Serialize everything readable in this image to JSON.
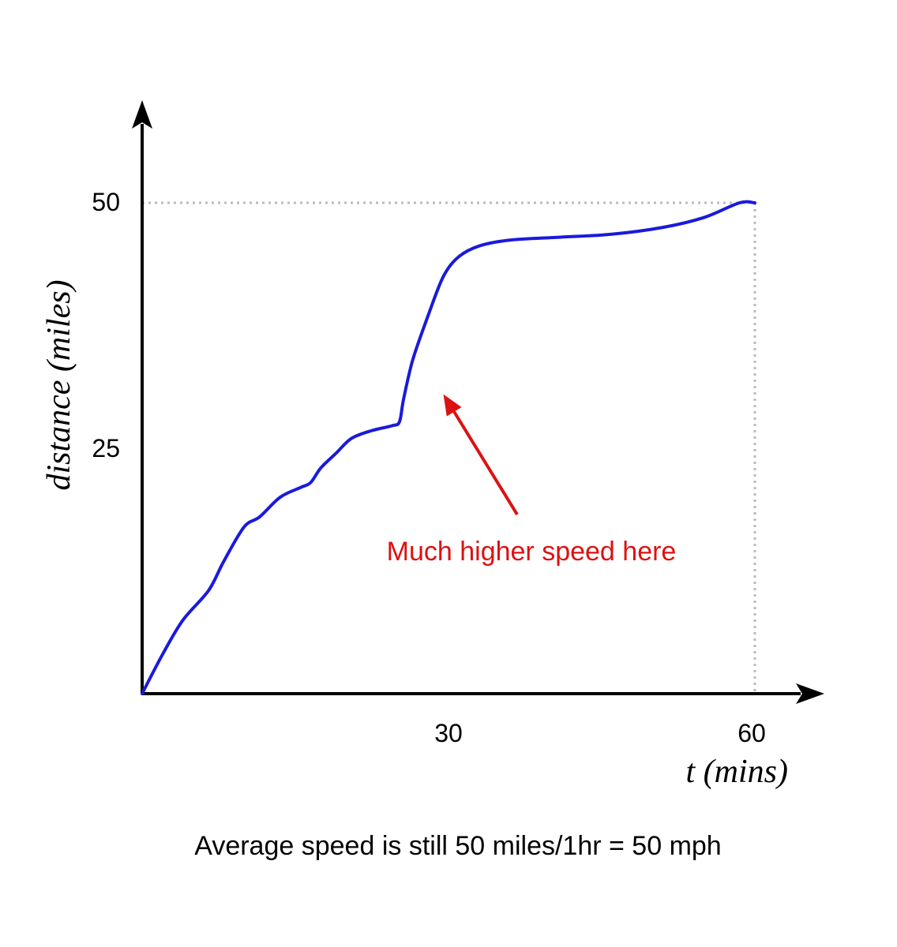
{
  "chart_data": {
    "type": "line",
    "xlabel": "t (mins)",
    "ylabel": "distance (miles)",
    "xlim": [
      0,
      67
    ],
    "ylim": [
      0,
      60
    ],
    "x_ticks": [
      30,
      60
    ],
    "y_ticks": [
      25,
      50
    ],
    "grid": false,
    "reference_point": {
      "x": 60,
      "y": 50
    },
    "series": [
      {
        "name": "distance",
        "color": "#1a1adc",
        "x": [
          0,
          2,
          4,
          6.5,
          8,
          10,
          11.5,
          13.5,
          15.5,
          16.5,
          17.5,
          19,
          20.5,
          22.5,
          24.5,
          25.2,
          25.6,
          26.5,
          28,
          29.5,
          31,
          33,
          36,
          41,
          46,
          51,
          55,
          58.5,
          60
        ],
        "y": [
          0,
          4,
          7.5,
          10.5,
          13.5,
          17,
          18,
          20,
          21,
          21.5,
          23,
          24.5,
          26,
          26.8,
          27.3,
          27.7,
          30,
          34,
          38.5,
          42.5,
          44.5,
          45.6,
          46.2,
          46.5,
          46.8,
          47.5,
          48.5,
          50,
          50
        ]
      }
    ],
    "annotations": [
      {
        "text": "Much higher speed here",
        "color": "#dd1111",
        "arrow_to": {
          "x": 29.5,
          "y": 30.5
        }
      }
    ],
    "caption": "Average speed is still 50 miles/1hr = 50 mph"
  }
}
